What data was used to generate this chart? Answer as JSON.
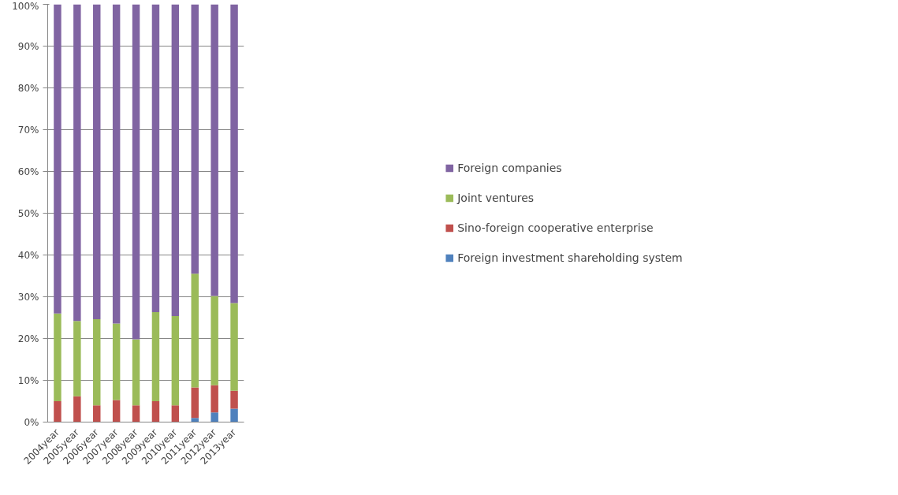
{
  "chart_data": {
    "type": "bar",
    "stacked": true,
    "categories": [
      "2004year",
      "2005year",
      "2006year",
      "2007year",
      "2008year",
      "2009year",
      "2010year",
      "2011year",
      "2012year",
      "2013year"
    ],
    "series": [
      {
        "name": "Foreign investment shareholding system",
        "color": "#4f81bd",
        "values": [
          0,
          0,
          0,
          0,
          0,
          0,
          0,
          1,
          2.3,
          3.2
        ]
      },
      {
        "name": "Sino-foreign cooperative enterprise",
        "color": "#c0504d",
        "values": [
          5,
          6.2,
          4,
          5.3,
          4,
          5,
          4,
          7.3,
          6.5,
          4.3
        ]
      },
      {
        "name": "Joint ventures",
        "color": "#9bbb59",
        "values": [
          21,
          18,
          20.6,
          18.3,
          15.8,
          21.3,
          21.4,
          27.2,
          21.4,
          21
        ]
      },
      {
        "name": "Foreign companies",
        "color": "#8064a2",
        "values": [
          74,
          75.8,
          75.4,
          76.4,
          80.2,
          73.7,
          74.6,
          64.5,
          69.8,
          71.5
        ]
      }
    ],
    "ylim": [
      0,
      100
    ],
    "yticks": [
      {
        "value": 0,
        "label": "0%"
      },
      {
        "value": 10,
        "label": "10%"
      },
      {
        "value": 20,
        "label": "20%"
      },
      {
        "value": 30,
        "label": "30%"
      },
      {
        "value": 40,
        "label": "40%"
      },
      {
        "value": 50,
        "label": "50%"
      },
      {
        "value": 60,
        "label": "60%"
      },
      {
        "value": 70,
        "label": "70%"
      },
      {
        "value": 80,
        "label": "80%"
      },
      {
        "value": 90,
        "label": "90%"
      },
      {
        "value": 100,
        "label": "100%"
      }
    ],
    "grid": "y",
    "legend": "right"
  }
}
